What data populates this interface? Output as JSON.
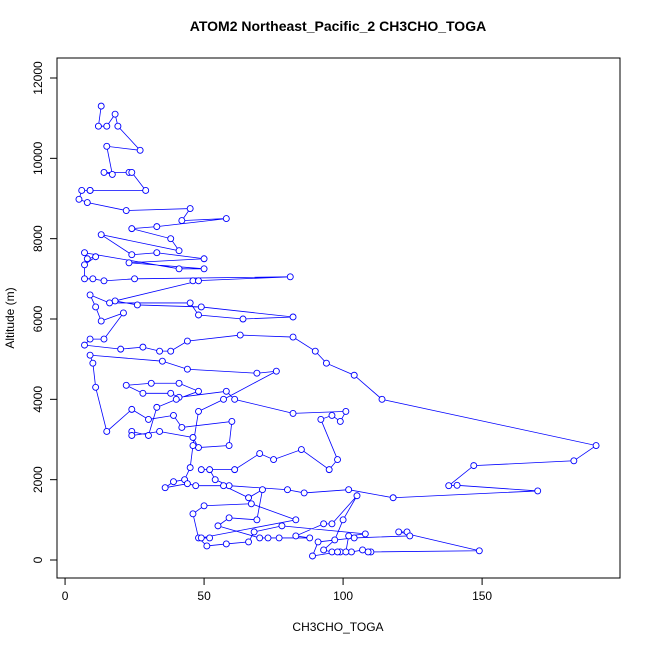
{
  "chart_data": {
    "type": "line",
    "title": "ATOM2 Northeast_Pacific_2 CH3CHO_TOGA",
    "x_label": "CH3CHO_TOGA",
    "y_label": "Altitude (m)",
    "xlim": [
      -2.9,
      199.6
    ],
    "ylim": [
      -448,
      12498
    ],
    "xticks": [
      0,
      50,
      100,
      150
    ],
    "yticks": [
      0,
      2000,
      4000,
      6000,
      8000,
      10000,
      12000
    ],
    "markers": true,
    "x": [
      13,
      12,
      15,
      18,
      19,
      27,
      15,
      17,
      14,
      23,
      24,
      29,
      9,
      9,
      6,
      5,
      8,
      22,
      45,
      42,
      58,
      33,
      24,
      38,
      41,
      13,
      24,
      33,
      50,
      23,
      50,
      41,
      7,
      8,
      11,
      7,
      7,
      10,
      14,
      25,
      81,
      46,
      48,
      18,
      26,
      49,
      82,
      64,
      48,
      45,
      16,
      9,
      11,
      13,
      21,
      14,
      9,
      7,
      20,
      28,
      34,
      38,
      44,
      63,
      82,
      90,
      94,
      104,
      114,
      191,
      183,
      147,
      138,
      141,
      170,
      118,
      102,
      86,
      80,
      59,
      54,
      52,
      49,
      61,
      70,
      75,
      85,
      95,
      98,
      92,
      96,
      99,
      101,
      82,
      61,
      58,
      41,
      38,
      28,
      22,
      31,
      41,
      48,
      40,
      33,
      30,
      24,
      24,
      34,
      46,
      48,
      59,
      60,
      42,
      39,
      30,
      24,
      15,
      11,
      10,
      9,
      35,
      44,
      69,
      76,
      57,
      48,
      46,
      45,
      43,
      39,
      36,
      44,
      47,
      57,
      66,
      71,
      69,
      59,
      55,
      70,
      73,
      77,
      88,
      83,
      93,
      96,
      105,
      100,
      97,
      93,
      96,
      99,
      103,
      107,
      110,
      109,
      149,
      120,
      123,
      124,
      104,
      91,
      89,
      98,
      101,
      102,
      108,
      78,
      68,
      66,
      58,
      51,
      48,
      46,
      50,
      67,
      83,
      49,
      52
    ],
    "series": [
      {
        "name": "CH3CHO_TOGA",
        "color": "#0000ff",
        "values": [
          11300,
          10800,
          10800,
          11100,
          10800,
          10200,
          10300,
          9600,
          9650,
          9650,
          9650,
          9200,
          9200,
          9200,
          9200,
          8980,
          8900,
          8700,
          8750,
          8450,
          8500,
          8300,
          8250,
          8000,
          7700,
          8100,
          7600,
          7650,
          7500,
          7400,
          7250,
          7250,
          7650,
          7500,
          7550,
          7350,
          7000,
          7000,
          6950,
          7000,
          7050,
          6950,
          6950,
          6450,
          6350,
          6300,
          6050,
          6000,
          6100,
          6400,
          6400,
          6600,
          6300,
          5950,
          6150,
          5500,
          5500,
          5350,
          5250,
          5300,
          5200,
          5200,
          5450,
          5600,
          5550,
          5200,
          4900,
          4600,
          4000,
          2850,
          2470,
          2350,
          1850,
          1860,
          1720,
          1550,
          1750,
          1670,
          1750,
          1850,
          2000,
          2250,
          2250,
          2250,
          2650,
          2500,
          2750,
          2250,
          2500,
          3500,
          3600,
          3450,
          3700,
          3650,
          4000,
          4200,
          4050,
          4150,
          4150,
          4350,
          4400,
          4400,
          4200,
          4000,
          3800,
          3100,
          3200,
          3100,
          3200,
          3050,
          2800,
          2850,
          3450,
          3300,
          3600,
          3500,
          3750,
          3200,
          4300,
          4900,
          5100,
          4950,
          4750,
          4650,
          4700,
          4000,
          3700,
          2850,
          2300,
          2000,
          1950,
          1800,
          1900,
          1850,
          1850,
          1550,
          1750,
          1000,
          1050,
          850,
          550,
          550,
          550,
          550,
          600,
          900,
          900,
          1600,
          1000,
          500,
          250,
          200,
          200,
          200,
          250,
          200,
          200,
          230,
          700,
          700,
          600,
          550,
          450,
          100,
          200,
          200,
          600,
          650,
          850,
          700,
          450,
          400,
          350,
          550,
          1150,
          1350,
          1400,
          1000,
          550,
          550
        ]
      }
    ]
  }
}
